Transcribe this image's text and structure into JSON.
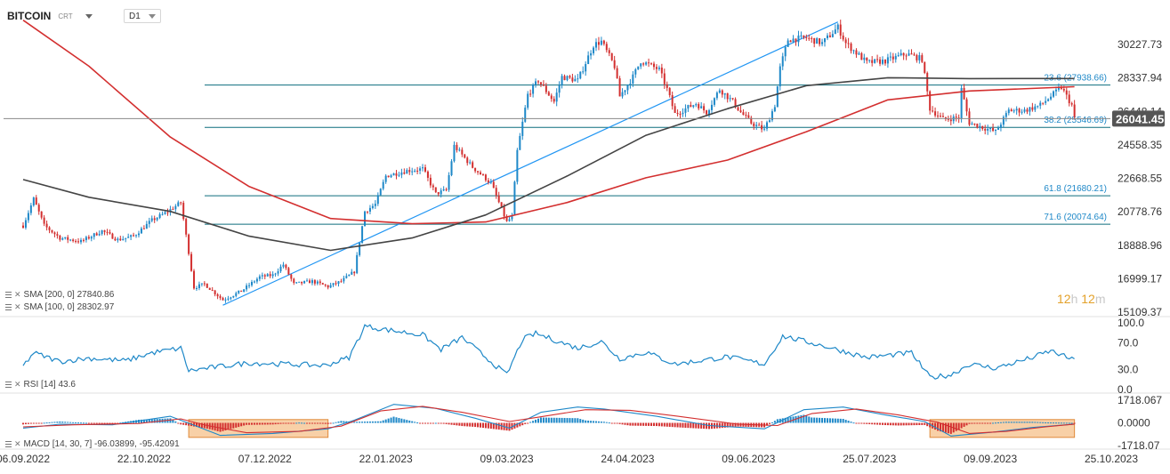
{
  "header": {
    "symbol": "BITCOIN",
    "symbol_sub": "CRT",
    "timeframe": "D1"
  },
  "countdown": {
    "h_value": "12",
    "h_unit": "h",
    "m_value": "12",
    "m_unit": "m"
  },
  "legends": {
    "sma200": "SMA [200, 0] 27840.86",
    "sma100": "SMA [100, 0] 28302.97",
    "rsi": "RSI [14] 43.6",
    "macd": "MACD [14, 30, 7] -96.03899, -95.42091"
  },
  "colors": {
    "bull": "#1e88c8",
    "bear": "#d32f2f",
    "sma200": "#d32f2f",
    "sma100": "#444444",
    "fib": "#0d6e7e",
    "trend": "#2196f3",
    "price_badge": "#555555",
    "highlight": "#f5c08a",
    "hist_pos": "#1e88c8",
    "hist_neg": "#d32f2f"
  },
  "chart_data": [
    {
      "type": "candlestick",
      "title": "BITCOIN D1",
      "x_ticks": [
        "06.09.2022",
        "22.10.2022",
        "07.12.2022",
        "22.01.2023",
        "09.03.2023",
        "24.04.2023",
        "09.06.2023",
        "25.07.2023",
        "09.09.2023",
        "25.10.2023"
      ],
      "y_ticks": [
        "30227.73",
        "28337.94",
        "26448.14",
        "24558.35",
        "22668.55",
        "20778.76",
        "18888.96",
        "16999.17",
        "15109.37"
      ],
      "ylim": [
        15109.37,
        31700
      ],
      "last_price": "26041.45",
      "fib_levels": [
        {
          "label": "23.6 (27938.66)",
          "value": 27938.66
        },
        {
          "label": "38.2 (25546.69)",
          "value": 25546.69
        },
        {
          "label": "61.8 (21680.21)",
          "value": 21680.21
        },
        {
          "label": "71.6 (20074.64)",
          "value": 20074.64
        }
      ],
      "trendline": [
        {
          "date": "2022-11-21",
          "price": 15500
        },
        {
          "date": "2023-07-13",
          "price": 31500
        }
      ],
      "price_path": [
        [
          "2022-09-06",
          20000
        ],
        [
          "2022-09-10",
          21500
        ],
        [
          "2022-09-14",
          20000
        ],
        [
          "2022-09-20",
          19300
        ],
        [
          "2022-09-28",
          19100
        ],
        [
          "2022-10-06",
          19700
        ],
        [
          "2022-10-12",
          19200
        ],
        [
          "2022-10-18",
          19400
        ],
        [
          "2022-10-25",
          20300
        ],
        [
          "2022-10-30",
          20700
        ],
        [
          "2022-11-05",
          21300
        ],
        [
          "2022-11-08",
          18500
        ],
        [
          "2022-11-10",
          16500
        ],
        [
          "2022-11-14",
          16700
        ],
        [
          "2022-11-21",
          15800
        ],
        [
          "2022-11-28",
          16300
        ],
        [
          "2022-12-05",
          17100
        ],
        [
          "2022-12-10",
          17200
        ],
        [
          "2022-12-14",
          17800
        ],
        [
          "2022-12-18",
          16700
        ],
        [
          "2022-12-25",
          16850
        ],
        [
          "2022-12-31",
          16550
        ],
        [
          "2023-01-05",
          16850
        ],
        [
          "2023-01-10",
          17400
        ],
        [
          "2023-01-14",
          20800
        ],
        [
          "2023-01-18",
          21200
        ],
        [
          "2023-01-22",
          22800
        ],
        [
          "2023-01-30",
          23100
        ],
        [
          "2023-02-05",
          23200
        ],
        [
          "2023-02-10",
          21800
        ],
        [
          "2023-02-14",
          22000
        ],
        [
          "2023-02-17",
          24500
        ],
        [
          "2023-02-24",
          23300
        ],
        [
          "2023-03-03",
          22400
        ],
        [
          "2023-03-09",
          20200
        ],
        [
          "2023-03-11",
          20500
        ],
        [
          "2023-03-13",
          24200
        ],
        [
          "2023-03-17",
          27400
        ],
        [
          "2023-03-21",
          28200
        ],
        [
          "2023-03-27",
          27000
        ],
        [
          "2023-03-30",
          28400
        ],
        [
          "2023-04-05",
          28200
        ],
        [
          "2023-04-11",
          30200
        ],
        [
          "2023-04-14",
          30400
        ],
        [
          "2023-04-19",
          29000
        ],
        [
          "2023-04-21",
          27300
        ],
        [
          "2023-04-26",
          28400
        ],
        [
          "2023-04-29",
          29300
        ],
        [
          "2023-05-06",
          28800
        ],
        [
          "2023-05-09",
          27700
        ],
        [
          "2023-05-12",
          26300
        ],
        [
          "2023-05-20",
          26900
        ],
        [
          "2023-05-24",
          26400
        ],
        [
          "2023-05-29",
          27700
        ],
        [
          "2023-06-03",
          27000
        ],
        [
          "2023-06-06",
          26400
        ],
        [
          "2023-06-10",
          25800
        ],
        [
          "2023-06-15",
          25400
        ],
        [
          "2023-06-19",
          26800
        ],
        [
          "2023-06-21",
          28900
        ],
        [
          "2023-06-24",
          30500
        ],
        [
          "2023-07-01",
          30600
        ],
        [
          "2023-07-07",
          30300
        ],
        [
          "2023-07-13",
          31200
        ],
        [
          "2023-07-16",
          30300
        ],
        [
          "2023-07-24",
          29200
        ],
        [
          "2023-07-31",
          29300
        ],
        [
          "2023-08-08",
          29700
        ],
        [
          "2023-08-14",
          29400
        ],
        [
          "2023-08-17",
          26600
        ],
        [
          "2023-08-22",
          26000
        ],
        [
          "2023-08-28",
          26100
        ],
        [
          "2023-08-29",
          27700
        ],
        [
          "2023-09-01",
          25800
        ],
        [
          "2023-09-11",
          25300
        ],
        [
          "2023-09-16",
          26500
        ],
        [
          "2023-09-22",
          26500
        ],
        [
          "2023-09-28",
          26800
        ],
        [
          "2023-10-02",
          27300
        ],
        [
          "2023-10-06",
          27800
        ],
        [
          "2023-10-10",
          26800
        ],
        [
          "2023-10-11",
          26041
        ]
      ],
      "series": [
        {
          "name": "SMA [200, 0] 27840.86",
          "last": 27840.86
        },
        {
          "name": "SMA [100, 0] 28302.97",
          "last": 28302.97
        }
      ],
      "sma200_path": [
        [
          "2022-09-06",
          31600
        ],
        [
          "2022-10-01",
          29000
        ],
        [
          "2022-11-01",
          25000
        ],
        [
          "2022-12-01",
          22200
        ],
        [
          "2023-01-01",
          20400
        ],
        [
          "2023-02-01",
          20100
        ],
        [
          "2023-03-01",
          20200
        ],
        [
          "2023-04-01",
          21300
        ],
        [
          "2023-05-01",
          22700
        ],
        [
          "2023-06-01",
          23700
        ],
        [
          "2023-07-01",
          25300
        ],
        [
          "2023-08-01",
          27100
        ],
        [
          "2023-09-01",
          27600
        ],
        [
          "2023-10-11",
          27840.86
        ]
      ],
      "sma100_path": [
        [
          "2022-09-06",
          22600
        ],
        [
          "2022-10-01",
          21600
        ],
        [
          "2022-11-01",
          20800
        ],
        [
          "2022-12-01",
          19400
        ],
        [
          "2023-01-01",
          18600
        ],
        [
          "2023-02-01",
          19300
        ],
        [
          "2023-03-01",
          20600
        ],
        [
          "2023-04-01",
          22800
        ],
        [
          "2023-05-01",
          25100
        ],
        [
          "2023-06-01",
          26600
        ],
        [
          "2023-07-01",
          27900
        ],
        [
          "2023-08-01",
          28350
        ],
        [
          "2023-09-01",
          28300
        ],
        [
          "2023-10-11",
          28302.97
        ]
      ]
    },
    {
      "type": "line",
      "title": "RSI [14] 43.6",
      "y_ticks": [
        "100.0",
        "70.0",
        "30.0",
        "0.0"
      ],
      "ylim": [
        0,
        100
      ],
      "series": [
        {
          "name": "RSI [14] 43.6",
          "last": 43.6
        }
      ],
      "rsi_path": [
        [
          "2022-09-06",
          35
        ],
        [
          "2022-09-10",
          55
        ],
        [
          "2022-09-20",
          42
        ],
        [
          "2022-10-01",
          47
        ],
        [
          "2022-10-15",
          43
        ],
        [
          "2022-10-25",
          55
        ],
        [
          "2022-11-05",
          62
        ],
        [
          "2022-11-08",
          28
        ],
        [
          "2022-11-15",
          32
        ],
        [
          "2022-12-01",
          40
        ],
        [
          "2022-12-15",
          38
        ],
        [
          "2022-12-30",
          36
        ],
        [
          "2023-01-08",
          48
        ],
        [
          "2023-01-14",
          95
        ],
        [
          "2023-01-25",
          88
        ],
        [
          "2023-02-05",
          82
        ],
        [
          "2023-02-12",
          60
        ],
        [
          "2023-02-20",
          78
        ],
        [
          "2023-03-09",
          22
        ],
        [
          "2023-03-15",
          75
        ],
        [
          "2023-03-20",
          84
        ],
        [
          "2023-04-05",
          62
        ],
        [
          "2023-04-14",
          72
        ],
        [
          "2023-04-21",
          46
        ],
        [
          "2023-05-01",
          56
        ],
        [
          "2023-05-12",
          38
        ],
        [
          "2023-06-01",
          49
        ],
        [
          "2023-06-15",
          38
        ],
        [
          "2023-06-22",
          80
        ],
        [
          "2023-07-06",
          67
        ],
        [
          "2023-07-24",
          48
        ],
        [
          "2023-08-10",
          55
        ],
        [
          "2023-08-17",
          18
        ],
        [
          "2023-08-25",
          22
        ],
        [
          "2023-09-01",
          38
        ],
        [
          "2023-09-11",
          32
        ],
        [
          "2023-09-25",
          48
        ],
        [
          "2023-10-02",
          58
        ],
        [
          "2023-10-11",
          43.6
        ]
      ]
    },
    {
      "type": "line",
      "title": "MACD [14, 30, 7] -96.03899, -95.42091",
      "y_ticks": [
        "1718.067",
        "0.0000",
        "-1718.07"
      ],
      "ylim": [
        -1718.07,
        1718.067
      ],
      "series": [
        {
          "name": "MACD",
          "last": -96.03899
        },
        {
          "name": "Signal",
          "last": -95.42091
        }
      ],
      "macd_path": [
        [
          "2022-09-06",
          -400
        ],
        [
          "2022-09-20",
          -100
        ],
        [
          "2022-10-10",
          -150
        ],
        [
          "2022-11-01",
          500
        ],
        [
          "2022-11-09",
          -100
        ],
        [
          "2022-11-20",
          -950
        ],
        [
          "2022-12-10",
          -800
        ],
        [
          "2022-12-31",
          -450
        ],
        [
          "2023-01-10",
          200
        ],
        [
          "2023-01-25",
          1400
        ],
        [
          "2023-02-10",
          1100
        ],
        [
          "2023-02-25",
          350
        ],
        [
          "2023-03-10",
          -400
        ],
        [
          "2023-03-22",
          800
        ],
        [
          "2023-04-05",
          1200
        ],
        [
          "2023-04-15",
          1050
        ],
        [
          "2023-05-05",
          500
        ],
        [
          "2023-05-25",
          -200
        ],
        [
          "2023-06-15",
          -450
        ],
        [
          "2023-06-30",
          1000
        ],
        [
          "2023-07-15",
          1200
        ],
        [
          "2023-07-31",
          600
        ],
        [
          "2023-08-15",
          100
        ],
        [
          "2023-08-25",
          -1000
        ],
        [
          "2023-09-10",
          -700
        ],
        [
          "2023-09-25",
          -350
        ],
        [
          "2023-10-11",
          -96
        ]
      ],
      "signal_path": [
        [
          "2022-09-06",
          -300
        ],
        [
          "2022-09-25",
          -150
        ],
        [
          "2022-10-20",
          -50
        ],
        [
          "2022-11-05",
          300
        ],
        [
          "2022-11-15",
          -200
        ],
        [
          "2022-11-30",
          -750
        ],
        [
          "2022-12-20",
          -650
        ],
        [
          "2023-01-05",
          -250
        ],
        [
          "2023-01-20",
          900
        ],
        [
          "2023-02-05",
          1250
        ],
        [
          "2023-02-20",
          800
        ],
        [
          "2023-03-10",
          100
        ],
        [
          "2023-03-20",
          400
        ],
        [
          "2023-04-08",
          1000
        ],
        [
          "2023-04-25",
          950
        ],
        [
          "2023-05-15",
          450
        ],
        [
          "2023-06-05",
          -100
        ],
        [
          "2023-06-20",
          -200
        ],
        [
          "2023-07-03",
          700
        ],
        [
          "2023-07-20",
          1050
        ],
        [
          "2023-08-05",
          600
        ],
        [
          "2023-08-20",
          50
        ],
        [
          "2023-09-01",
          -800
        ],
        [
          "2023-09-15",
          -650
        ],
        [
          "2023-09-30",
          -300
        ],
        [
          "2023-10-11",
          -95
        ]
      ]
    }
  ]
}
